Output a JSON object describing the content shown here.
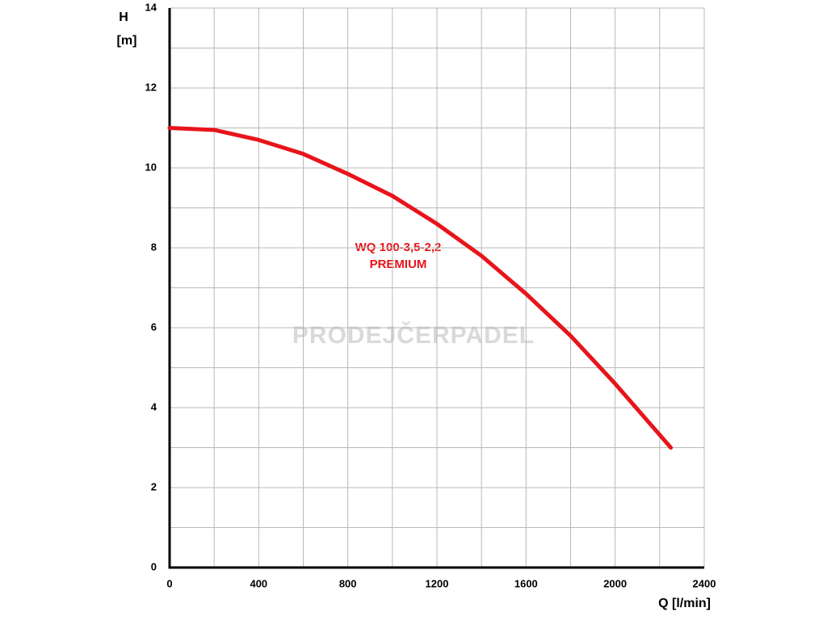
{
  "chart_data": {
    "type": "line",
    "y_label_lines": [
      "H",
      "[m]"
    ],
    "x_label": "Q [l/min]",
    "annotation_lines": [
      "WQ 100-3,5-2,2",
      "PREMIUM"
    ],
    "watermark": "PRODEJČERPADEL",
    "x": [
      0,
      200,
      400,
      600,
      800,
      1000,
      1200,
      1400,
      1600,
      1800,
      2000,
      2250
    ],
    "series": [
      {
        "name": "WQ 100-3,5-2,2 PREMIUM",
        "color": "#e8141b",
        "values": [
          11,
          10.95,
          10.7,
          10.35,
          9.85,
          9.3,
          8.6,
          7.8,
          6.85,
          5.8,
          4.6,
          3.0
        ]
      }
    ],
    "xlim": [
      0,
      2400
    ],
    "ylim": [
      0,
      14
    ],
    "xticks": [
      0,
      400,
      800,
      1200,
      1600,
      2000,
      2400
    ],
    "x_minor_ticks": [
      200,
      600,
      1000,
      1400,
      1800,
      2200
    ],
    "yticks": [
      0,
      2,
      4,
      6,
      8,
      10,
      12,
      14
    ],
    "y_minor_ticks": [
      1,
      3,
      5,
      7,
      9,
      11,
      13
    ],
    "grid": true
  }
}
